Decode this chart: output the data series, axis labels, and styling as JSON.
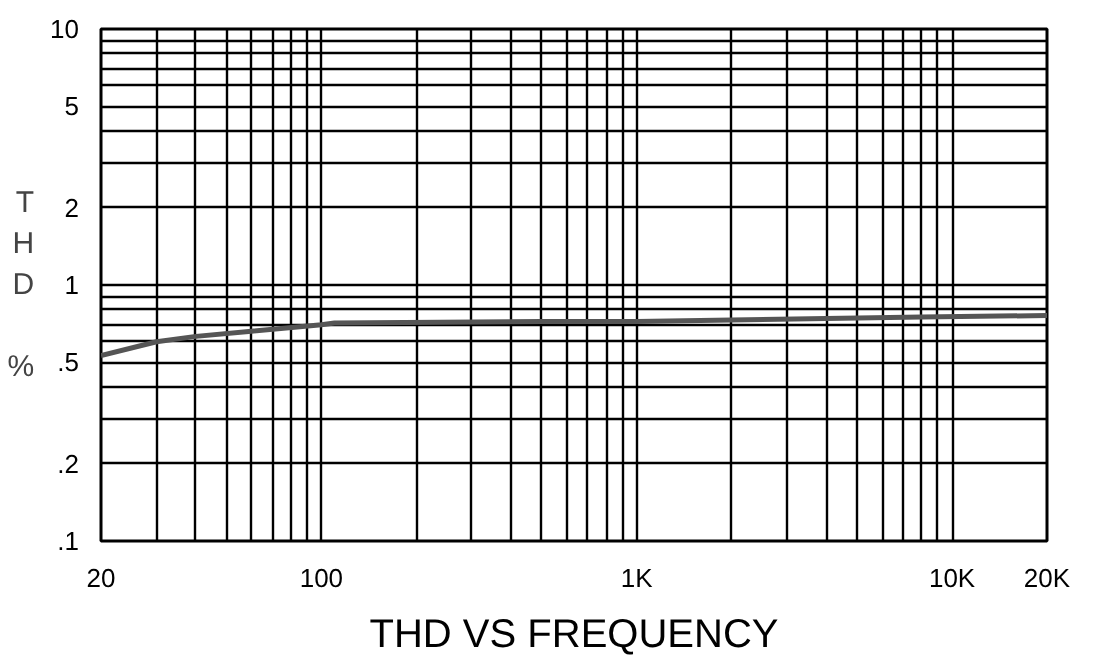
{
  "chart_data": {
    "type": "line",
    "title": "THD VS FREQUENCY",
    "ylabel": "THD %",
    "log": "xy",
    "grid": true,
    "marker": "none",
    "line_style": "solid",
    "xlim": [
      20,
      20000
    ],
    "ylim": [
      0.1,
      10
    ],
    "xticks": [
      20,
      {
        "value": 30,
        "label": null
      },
      {
        "value": 40,
        "label": null
      },
      {
        "value": 50,
        "label": null
      },
      {
        "value": 60,
        "label": null
      },
      {
        "value": 70,
        "label": null
      },
      {
        "value": 80,
        "label": null
      },
      {
        "value": 90,
        "label": null
      },
      100,
      {
        "value": 200,
        "label": null
      },
      {
        "value": 300,
        "label": null
      },
      {
        "value": 400,
        "label": null
      },
      {
        "value": 500,
        "label": null
      },
      {
        "value": 600,
        "label": null
      },
      {
        "value": 700,
        "label": null
      },
      {
        "value": 800,
        "label": null
      },
      {
        "value": 900,
        "label": null
      },
      {
        "value": 1000,
        "label": "1K"
      },
      {
        "value": 2000,
        "label": null
      },
      {
        "value": 3000,
        "label": null
      },
      {
        "value": 4000,
        "label": null
      },
      {
        "value": 5000,
        "label": null
      },
      {
        "value": 6000,
        "label": null
      },
      {
        "value": 7000,
        "label": null
      },
      {
        "value": 8000,
        "label": null
      },
      {
        "value": 9000,
        "label": null
      },
      {
        "value": 10000,
        "label": "10K"
      },
      {
        "value": 20000,
        "label": "20K"
      }
    ],
    "yticks": [
      {
        "value": 0.1,
        "label": ".1"
      },
      {
        "value": 0.2,
        "label": ".2"
      },
      {
        "value": 0.3,
        "label": null
      },
      {
        "value": 0.4,
        "label": null
      },
      {
        "value": 0.5,
        "label": ".5"
      },
      {
        "value": 0.6,
        "label": null
      },
      {
        "value": 0.7,
        "label": null
      },
      {
        "value": 0.8,
        "label": null
      },
      {
        "value": 0.9,
        "label": null
      },
      1,
      2,
      {
        "value": 3,
        "label": null
      },
      {
        "value": 4,
        "label": null
      },
      5,
      {
        "value": 6,
        "label": null
      },
      {
        "value": 7,
        "label": null
      },
      {
        "value": 8,
        "label": null
      },
      {
        "value": 9,
        "label": null
      },
      10
    ],
    "x": [
      20,
      30,
      40,
      60,
      100,
      110,
      500,
      1000,
      2000,
      8000,
      20000
    ],
    "series": [
      {
        "color": "#555555",
        "values": [
          0.53,
          0.6,
          0.63,
          0.66,
          0.7,
          0.71,
          0.72,
          0.72,
          0.73,
          0.75,
          0.76
        ]
      }
    ]
  }
}
